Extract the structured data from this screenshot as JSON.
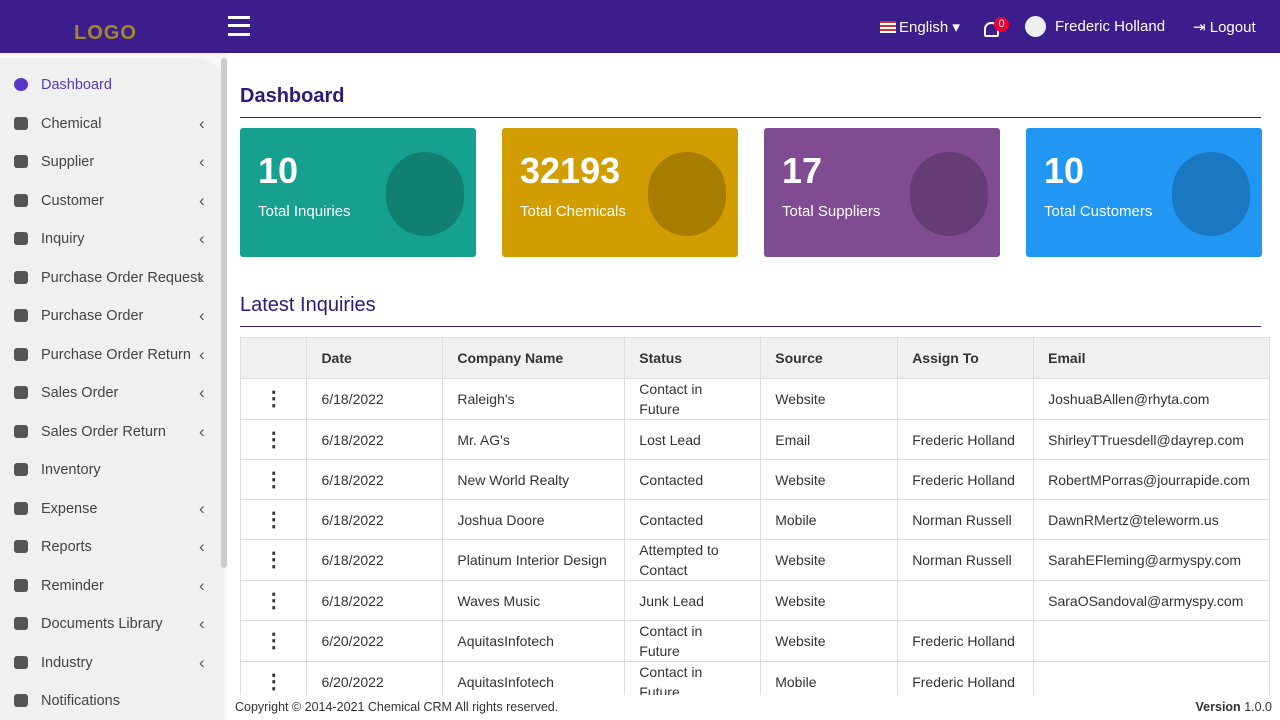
{
  "header": {
    "logo": "LOGO",
    "language": "English",
    "notification_count": 0,
    "user": "Frederic Holland",
    "logout": "Logout"
  },
  "sidebar": {
    "items": [
      {
        "label": "Dashboard",
        "active": true,
        "submenu": false
      },
      {
        "label": "Chemical",
        "active": false,
        "submenu": true
      },
      {
        "label": "Supplier",
        "active": false,
        "submenu": true
      },
      {
        "label": "Customer",
        "active": false,
        "submenu": true
      },
      {
        "label": "Inquiry",
        "active": false,
        "submenu": true
      },
      {
        "label": "Purchase Order Request",
        "active": false,
        "submenu": true
      },
      {
        "label": "Purchase Order",
        "active": false,
        "submenu": true
      },
      {
        "label": "Purchase Order Return",
        "active": false,
        "submenu": true
      },
      {
        "label": "Sales Order",
        "active": false,
        "submenu": true
      },
      {
        "label": "Sales Order Return",
        "active": false,
        "submenu": true
      },
      {
        "label": "Inventory",
        "active": false,
        "submenu": false
      },
      {
        "label": "Expense",
        "active": false,
        "submenu": true
      },
      {
        "label": "Reports",
        "active": false,
        "submenu": true
      },
      {
        "label": "Reminder",
        "active": false,
        "submenu": true
      },
      {
        "label": "Documents Library",
        "active": false,
        "submenu": true
      },
      {
        "label": "Industry",
        "active": false,
        "submenu": true
      },
      {
        "label": "Notifications",
        "active": false,
        "submenu": false
      }
    ]
  },
  "main": {
    "title": "Dashboard",
    "cards": [
      {
        "value": 10,
        "label": "Total Inquiries",
        "color": "#16a08f"
      },
      {
        "value": 32193,
        "label": "Total Chemicals",
        "color": "#d19d00"
      },
      {
        "value": 17,
        "label": "Total Suppliers",
        "color": "#7f4c91"
      },
      {
        "value": 10,
        "label": "Total Customers",
        "color": "#2196f3"
      }
    ],
    "section": "Latest Inquiries",
    "table": {
      "columns": [
        "Date",
        "Company Name",
        "Status",
        "Source",
        "Assign To",
        "Email"
      ],
      "rows": [
        [
          "6/18/2022",
          "Raleigh's",
          "Contact in Future",
          "Website",
          null,
          "JoshuaBAllen@rhyta.com"
        ],
        [
          "6/18/2022",
          "Mr. AG's",
          "Lost Lead",
          "Email",
          "Frederic Holland",
          "ShirleyTTruesdell@dayrep.com"
        ],
        [
          "6/18/2022",
          "New World Realty",
          "Contacted",
          "Website",
          "Frederic Holland",
          "RobertMPorras@jourrapide.com"
        ],
        [
          "6/18/2022",
          "Joshua Doore",
          "Contacted",
          "Mobile",
          "Norman Russell",
          "DawnRMertz@teleworm.us"
        ],
        [
          "6/18/2022",
          "Platinum Interior Design",
          "Attempted to Contact",
          "Website",
          "Norman Russell",
          "SarahEFleming@armyspy.com"
        ],
        [
          "6/18/2022",
          "Waves Music",
          "Junk Lead",
          "Website",
          null,
          "SaraOSandoval@armyspy.com"
        ],
        [
          "6/20/2022",
          "AquitasInfotech",
          "Contact in Future",
          "Website",
          "Frederic Holland",
          null
        ],
        [
          "6/20/2022",
          "AquitasInfotech",
          "Contact in Future",
          "Mobile",
          "Frederic Holland",
          null
        ]
      ]
    }
  },
  "footer": {
    "copyright": "Copyright © 2014-2021 Chemical CRM All rights reserved.",
    "version_label": "Version",
    "version": "1.0.0"
  }
}
